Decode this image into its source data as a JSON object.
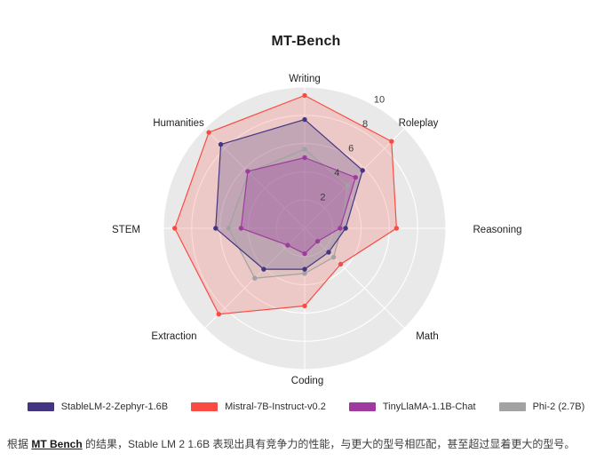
{
  "chart_data": {
    "type": "radar",
    "title": "MT-Bench",
    "axes": [
      "Writing",
      "Roleplay",
      "Reasoning",
      "Math",
      "Coding",
      "Extraction",
      "STEM",
      "Humanities"
    ],
    "radial_ticks": [
      2,
      4,
      6,
      8,
      10
    ],
    "range": [
      0,
      10
    ],
    "grid": true,
    "legend_position": "bottom",
    "series": [
      {
        "name": "StableLM-2-Zephyr-1.6B",
        "color": "#443583",
        "values": [
          7.7,
          5.8,
          2.9,
          2.4,
          2.9,
          4.1,
          6.3,
          8.4
        ]
      },
      {
        "name": "Mistral-7B-Instruct-v0.2",
        "color": "#fa4b43",
        "values": [
          9.4,
          8.7,
          6.5,
          3.6,
          5.5,
          8.6,
          9.2,
          9.6
        ]
      },
      {
        "name": "TinyLlaMA-1.1B-Chat",
        "color": "#9f3ba0",
        "values": [
          5.0,
          5.1,
          2.5,
          1.3,
          1.8,
          1.7,
          4.5,
          5.7
        ]
      },
      {
        "name": "Phi-2 (2.7B)",
        "color": "#a2a2a2",
        "values": [
          5.6,
          4.3,
          2.6,
          2.9,
          3.2,
          5.0,
          5.4,
          5.6
        ]
      }
    ],
    "background_color": "#e9e9e9"
  },
  "caption": {
    "prefix": "根据 ",
    "link": "MT Bench",
    "suffix": " 的结果，Stable LM 2 1.6B 表现出具有竞争力的性能，与更大的型号相匹配，甚至超过显着更大的型号。"
  }
}
